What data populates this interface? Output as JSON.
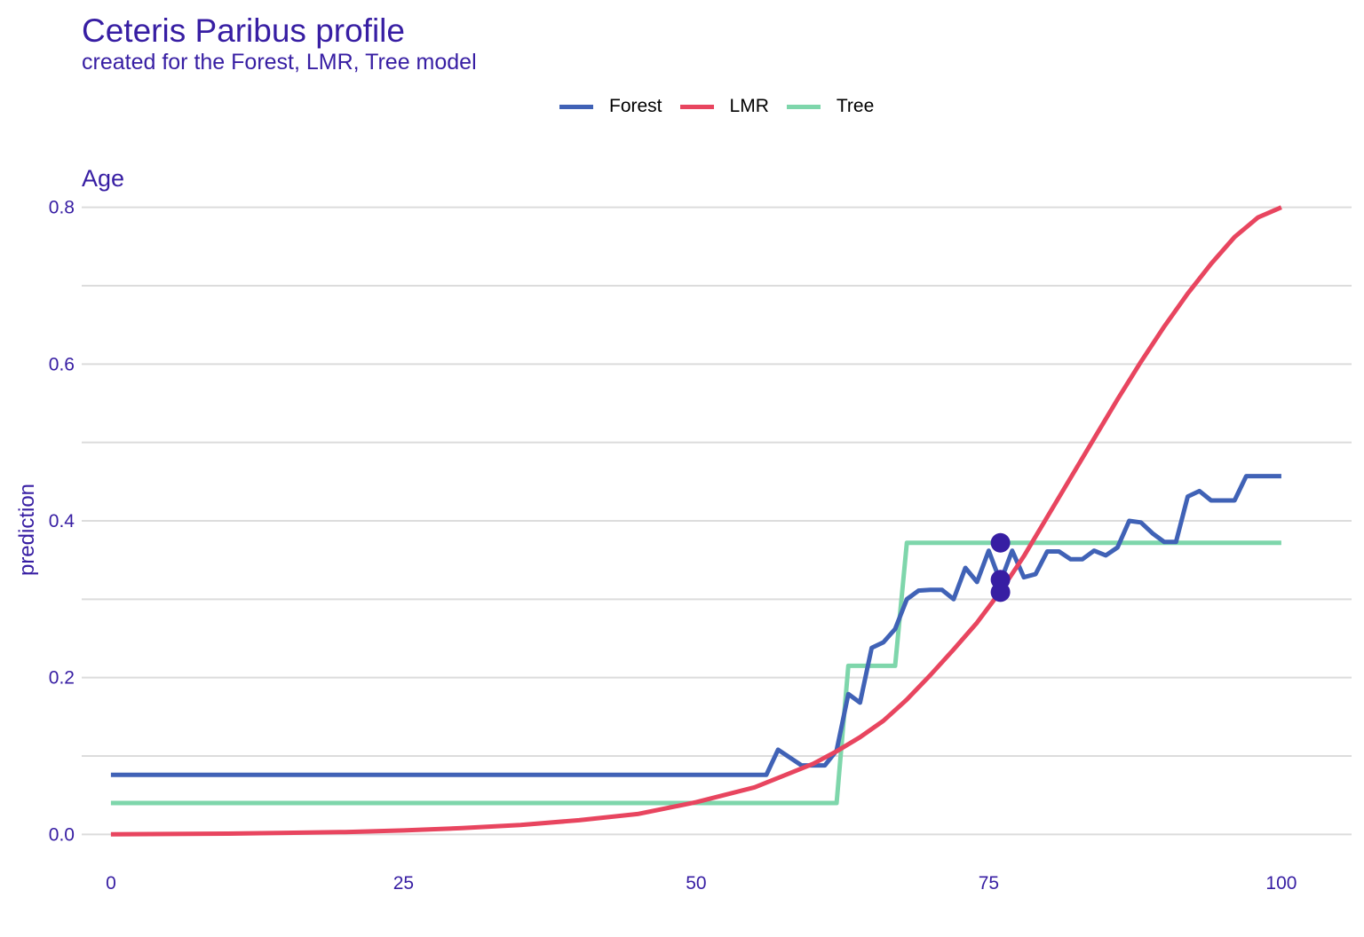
{
  "colors": {
    "text": "#371ea3",
    "grid": "#dcdcdc",
    "point": "#371ea3"
  },
  "chart_data": {
    "type": "line",
    "title": "Ceteris Paribus profile",
    "subtitle": "created for the Forest, LMR, Tree model",
    "facet_label": "Age",
    "xlabel": "",
    "ylabel": "prediction",
    "xlim": [
      -2.5,
      106
    ],
    "ylim": [
      -0.02,
      0.82
    ],
    "x_ticks": [
      0,
      25,
      50,
      75,
      100
    ],
    "x_tick_labels": [
      "0",
      "25",
      "50",
      "75",
      "100"
    ],
    "y_ticks": [
      0.0,
      0.2,
      0.4,
      0.6,
      0.8
    ],
    "y_tick_labels": [
      "0.0",
      "0.2",
      "0.4",
      "0.6",
      "0.8"
    ],
    "y_minor_ticks": [
      0.1,
      0.3,
      0.5,
      0.7
    ],
    "grid": true,
    "legend_position": "top",
    "series": [
      {
        "name": "Forest",
        "color": "#4062b6",
        "x": [
          0,
          56,
          57,
          59,
          60,
          61,
          62,
          63,
          64,
          65,
          66,
          67,
          68,
          69,
          70,
          71,
          72,
          73,
          74,
          75,
          76,
          77,
          78,
          79,
          80,
          81,
          82,
          83,
          84,
          85,
          86,
          87,
          88,
          89,
          90,
          91,
          92,
          93,
          94,
          95,
          96,
          97,
          98,
          99,
          100
        ],
        "values": [
          0.076,
          0.076,
          0.108,
          0.088,
          0.088,
          0.088,
          0.107,
          0.179,
          0.168,
          0.238,
          0.245,
          0.262,
          0.3,
          0.311,
          0.312,
          0.312,
          0.3,
          0.34,
          0.322,
          0.362,
          0.322,
          0.362,
          0.328,
          0.332,
          0.361,
          0.361,
          0.351,
          0.351,
          0.362,
          0.356,
          0.366,
          0.4,
          0.398,
          0.384,
          0.373,
          0.373,
          0.431,
          0.438,
          0.426,
          0.426,
          0.426,
          0.457,
          0.457,
          0.457,
          0.457
        ]
      },
      {
        "name": "LMR",
        "color": "#e8455f",
        "x": [
          0,
          5,
          10,
          15,
          20,
          25,
          30,
          35,
          40,
          45,
          50,
          55,
          60,
          62,
          64,
          66,
          68,
          70,
          72,
          74,
          76,
          78,
          80,
          82,
          84,
          86,
          88,
          90,
          92,
          94,
          96,
          98,
          100
        ],
        "values": [
          0.0,
          0.0005,
          0.001,
          0.002,
          0.003,
          0.005,
          0.008,
          0.012,
          0.018,
          0.026,
          0.041,
          0.06,
          0.09,
          0.106,
          0.124,
          0.145,
          0.172,
          0.203,
          0.236,
          0.27,
          0.31,
          0.355,
          0.405,
          0.455,
          0.505,
          0.555,
          0.603,
          0.648,
          0.69,
          0.728,
          0.762,
          0.787,
          0.8
        ]
      },
      {
        "name": "Tree",
        "color": "#7ed6ab",
        "x": [
          0,
          62,
          63,
          67,
          68,
          100
        ],
        "values": [
          0.04,
          0.04,
          0.215,
          0.215,
          0.372,
          0.372
        ],
        "step": true
      }
    ],
    "observations": [
      {
        "x": 76,
        "y": 0.372
      },
      {
        "x": 76,
        "y": 0.325
      },
      {
        "x": 76,
        "y": 0.309
      }
    ]
  }
}
